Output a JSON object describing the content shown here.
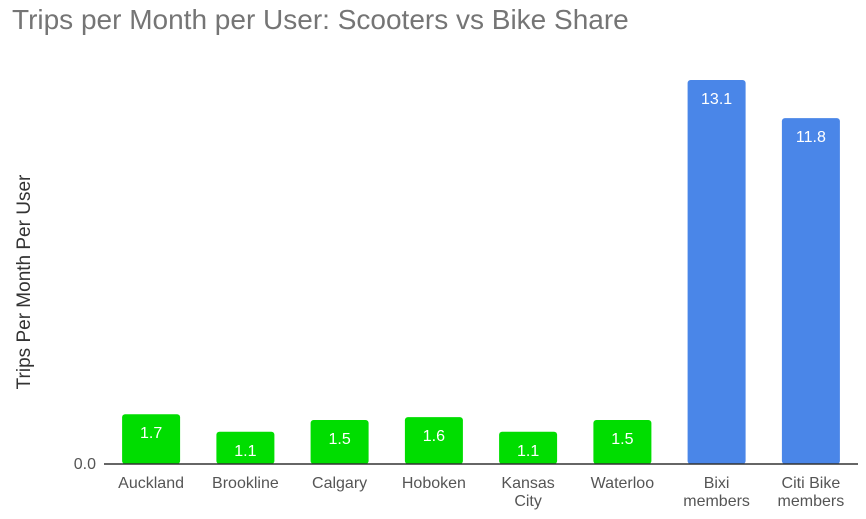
{
  "chart_data": {
    "type": "bar",
    "title": "Trips per Month per User: Scooters vs Bike Share",
    "ylabel": "Trips Per Month Per User",
    "xlabel": "",
    "y_tick_label": "0.0",
    "ylim": [
      0,
      14.5
    ],
    "grid": false,
    "categories": [
      [
        "Auckland"
      ],
      [
        "Brookline"
      ],
      [
        "Calgary"
      ],
      [
        "Hoboken"
      ],
      [
        "Kansas",
        "City"
      ],
      [
        "Waterloo"
      ],
      [
        "Bixi",
        "members"
      ],
      [
        "Citi Bike",
        "members"
      ]
    ],
    "values": [
      1.7,
      1.1,
      1.5,
      1.6,
      1.1,
      1.5,
      13.1,
      11.8
    ],
    "value_labels": [
      "1.7",
      "1.1",
      "1.5",
      "1.6",
      "1.1",
      "1.5",
      "13.1",
      "11.8"
    ],
    "bar_colors": [
      "#00dd00",
      "#00dd00",
      "#00dd00",
      "#00dd00",
      "#00dd00",
      "#00dd00",
      "#4a86e8",
      "#4a86e8"
    ]
  }
}
